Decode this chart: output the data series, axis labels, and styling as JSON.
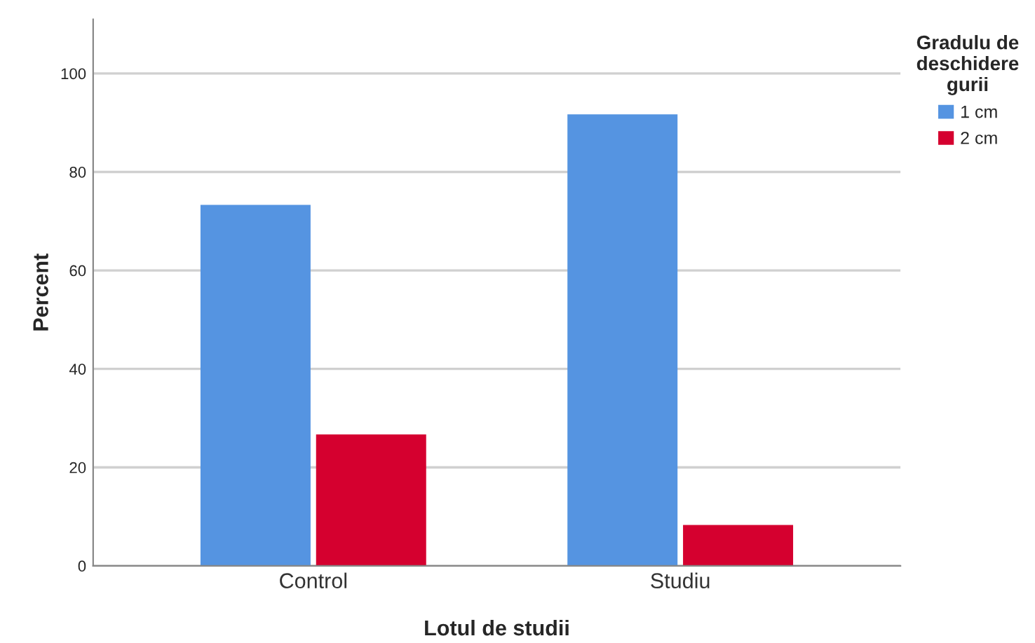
{
  "chart_data": {
    "type": "bar",
    "xlabel": "Lotul de studii",
    "ylabel": "Percent",
    "legend_title": "Gradulu de\ndeschidere\ngurii",
    "categories": [
      "Control",
      "Studiu"
    ],
    "series": [
      {
        "name": "1 cm",
        "color": "#5594e1",
        "values": [
          73.3,
          91.7
        ]
      },
      {
        "name": "2 cm",
        "color": "#d5002f",
        "values": [
          26.7,
          8.3
        ]
      }
    ],
    "ylim": [
      0,
      111
    ],
    "yticks": [
      0,
      20,
      40,
      60,
      80,
      100
    ],
    "grid": "y",
    "legend": "top right"
  }
}
